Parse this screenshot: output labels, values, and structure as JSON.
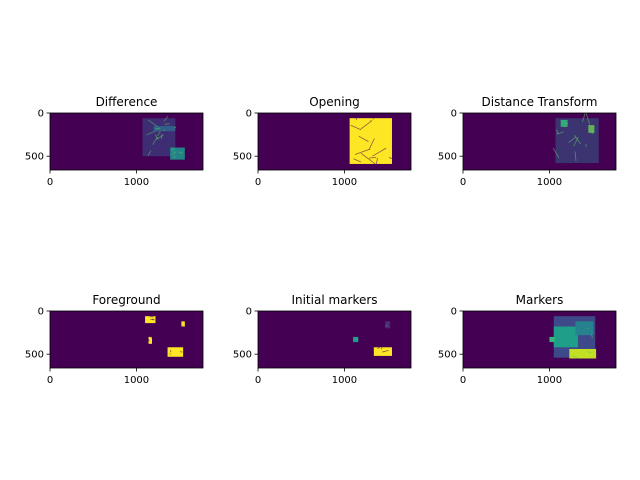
{
  "chart_data": [
    {
      "type": "heatmap",
      "title": "Difference",
      "xticks": [
        0,
        1000
      ],
      "yticks": [
        0,
        500
      ],
      "xlim": [
        0,
        1770
      ],
      "ylim": [
        660,
        0
      ],
      "colormap": "viridis",
      "background": "#440154",
      "features": [
        {
          "x": 1070,
          "y": 60,
          "w": 380,
          "h": 440,
          "color": "#3b528b",
          "opacity": 0.55,
          "lines": 10
        },
        {
          "x": 1390,
          "y": 400,
          "w": 170,
          "h": 140,
          "color": "#21918c",
          "opacity": 0.9,
          "lines": 4
        },
        {
          "x": 1200,
          "y": 150,
          "w": 250,
          "h": 60,
          "color": "#2c728e",
          "opacity": 0.7,
          "lines": 3
        }
      ]
    },
    {
      "type": "heatmap",
      "title": "Opening",
      "xticks": [
        0,
        1000
      ],
      "yticks": [
        0,
        500
      ],
      "xlim": [
        0,
        1770
      ],
      "ylim": [
        660,
        0
      ],
      "colormap": "viridis",
      "background": "#440154",
      "features": [
        {
          "x": 1060,
          "y": 60,
          "w": 490,
          "h": 530,
          "color": "#fde725",
          "opacity": 1,
          "lines": 14
        }
      ]
    },
    {
      "type": "heatmap",
      "title": "Distance Transform",
      "xticks": [
        0,
        1000
      ],
      "yticks": [
        0,
        500
      ],
      "xlim": [
        0,
        1770
      ],
      "ylim": [
        660,
        0
      ],
      "colormap": "viridis",
      "background": "#440154",
      "features": [
        {
          "x": 1070,
          "y": 60,
          "w": 500,
          "h": 520,
          "color": "#31688e",
          "opacity": 0.5,
          "lines": 10
        },
        {
          "x": 1130,
          "y": 80,
          "w": 80,
          "h": 80,
          "color": "#35b779",
          "opacity": 0.9,
          "lines": 2
        },
        {
          "x": 1450,
          "y": 140,
          "w": 70,
          "h": 90,
          "color": "#6ece58",
          "opacity": 0.8,
          "lines": 2
        }
      ]
    },
    {
      "type": "heatmap",
      "title": "Foreground",
      "xticks": [
        0,
        1000
      ],
      "yticks": [
        0,
        500
      ],
      "xlim": [
        0,
        1770
      ],
      "ylim": [
        660,
        0
      ],
      "colormap": "viridis",
      "background": "#440154",
      "features": [
        {
          "x": 1100,
          "y": 60,
          "w": 120,
          "h": 80,
          "color": "#fde725",
          "opacity": 1,
          "lines": 3
        },
        {
          "x": 1140,
          "y": 300,
          "w": 40,
          "h": 80,
          "color": "#fde725",
          "opacity": 1,
          "lines": 2
        },
        {
          "x": 1360,
          "y": 420,
          "w": 180,
          "h": 110,
          "color": "#fde725",
          "opacity": 1,
          "lines": 3
        },
        {
          "x": 1520,
          "y": 120,
          "w": 40,
          "h": 60,
          "color": "#fde725",
          "opacity": 1,
          "lines": 2
        }
      ]
    },
    {
      "type": "heatmap",
      "title": "Initial markers",
      "xticks": [
        0,
        1000
      ],
      "yticks": [
        0,
        500
      ],
      "xlim": [
        0,
        1770
      ],
      "ylim": [
        660,
        0
      ],
      "colormap": "viridis",
      "background": "#440154",
      "features": [
        {
          "x": 1100,
          "y": 300,
          "w": 60,
          "h": 60,
          "color": "#1f9e89",
          "opacity": 1,
          "lines": 2
        },
        {
          "x": 1340,
          "y": 420,
          "w": 210,
          "h": 100,
          "color": "#fde725",
          "opacity": 1,
          "lines": 3
        },
        {
          "x": 1470,
          "y": 120,
          "w": 60,
          "h": 80,
          "color": "#482878",
          "opacity": 1,
          "lines": 2
        }
      ]
    },
    {
      "type": "heatmap",
      "title": "Markers",
      "xticks": [
        0,
        1000
      ],
      "yticks": [
        0,
        500
      ],
      "xlim": [
        0,
        1770
      ],
      "ylim": [
        660,
        0
      ],
      "colormap": "viridis",
      "background": "#440154",
      "features": [
        {
          "x": 1050,
          "y": 60,
          "w": 480,
          "h": 480,
          "color": "#3e4989",
          "opacity": 1,
          "lines": 0
        },
        {
          "x": 1050,
          "y": 180,
          "w": 280,
          "h": 240,
          "color": "#1f9e89",
          "opacity": 1,
          "lines": 0
        },
        {
          "x": 1300,
          "y": 120,
          "w": 210,
          "h": 160,
          "color": "#26828e",
          "opacity": 1,
          "lines": 2
        },
        {
          "x": 1230,
          "y": 440,
          "w": 310,
          "h": 110,
          "color": "#c2df23",
          "opacity": 1,
          "lines": 2
        },
        {
          "x": 1000,
          "y": 300,
          "w": 60,
          "h": 60,
          "color": "#35b779",
          "opacity": 1,
          "lines": 0
        }
      ]
    }
  ]
}
